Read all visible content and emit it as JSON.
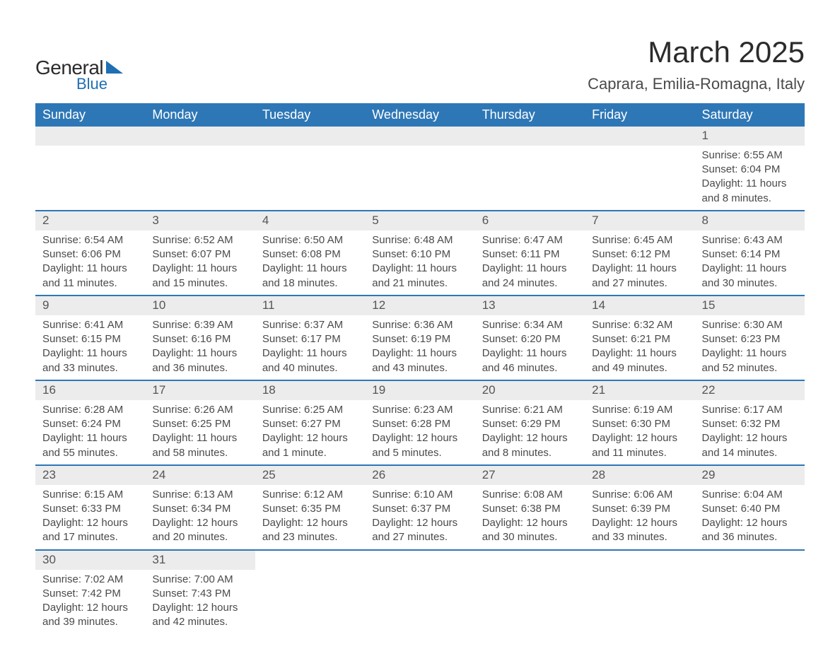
{
  "logo": {
    "text_general": "General",
    "text_blue": "Blue",
    "brand_color": "#1f6fb2"
  },
  "title": "March 2025",
  "location": "Caprara, Emilia-Romagna, Italy",
  "colors": {
    "header_bg": "#2e77b6",
    "header_text": "#ffffff",
    "daynum_bg": "#ececec",
    "row_border": "#2e77b6",
    "body_text": "#4a4a4a"
  },
  "fonts": {
    "title_pt": 42,
    "location_pt": 22,
    "weekday_pt": 18,
    "daynum_pt": 17,
    "body_pt": 15
  },
  "weekdays": [
    "Sunday",
    "Monday",
    "Tuesday",
    "Wednesday",
    "Thursday",
    "Friday",
    "Saturday"
  ],
  "weeks": [
    [
      null,
      null,
      null,
      null,
      null,
      null,
      {
        "d": "1",
        "sr": "Sunrise: 6:55 AM",
        "ss": "Sunset: 6:04 PM",
        "dl": "Daylight: 11 hours and 8 minutes."
      }
    ],
    [
      {
        "d": "2",
        "sr": "Sunrise: 6:54 AM",
        "ss": "Sunset: 6:06 PM",
        "dl": "Daylight: 11 hours and 11 minutes."
      },
      {
        "d": "3",
        "sr": "Sunrise: 6:52 AM",
        "ss": "Sunset: 6:07 PM",
        "dl": "Daylight: 11 hours and 15 minutes."
      },
      {
        "d": "4",
        "sr": "Sunrise: 6:50 AM",
        "ss": "Sunset: 6:08 PM",
        "dl": "Daylight: 11 hours and 18 minutes."
      },
      {
        "d": "5",
        "sr": "Sunrise: 6:48 AM",
        "ss": "Sunset: 6:10 PM",
        "dl": "Daylight: 11 hours and 21 minutes."
      },
      {
        "d": "6",
        "sr": "Sunrise: 6:47 AM",
        "ss": "Sunset: 6:11 PM",
        "dl": "Daylight: 11 hours and 24 minutes."
      },
      {
        "d": "7",
        "sr": "Sunrise: 6:45 AM",
        "ss": "Sunset: 6:12 PM",
        "dl": "Daylight: 11 hours and 27 minutes."
      },
      {
        "d": "8",
        "sr": "Sunrise: 6:43 AM",
        "ss": "Sunset: 6:14 PM",
        "dl": "Daylight: 11 hours and 30 minutes."
      }
    ],
    [
      {
        "d": "9",
        "sr": "Sunrise: 6:41 AM",
        "ss": "Sunset: 6:15 PM",
        "dl": "Daylight: 11 hours and 33 minutes."
      },
      {
        "d": "10",
        "sr": "Sunrise: 6:39 AM",
        "ss": "Sunset: 6:16 PM",
        "dl": "Daylight: 11 hours and 36 minutes."
      },
      {
        "d": "11",
        "sr": "Sunrise: 6:37 AM",
        "ss": "Sunset: 6:17 PM",
        "dl": "Daylight: 11 hours and 40 minutes."
      },
      {
        "d": "12",
        "sr": "Sunrise: 6:36 AM",
        "ss": "Sunset: 6:19 PM",
        "dl": "Daylight: 11 hours and 43 minutes."
      },
      {
        "d": "13",
        "sr": "Sunrise: 6:34 AM",
        "ss": "Sunset: 6:20 PM",
        "dl": "Daylight: 11 hours and 46 minutes."
      },
      {
        "d": "14",
        "sr": "Sunrise: 6:32 AM",
        "ss": "Sunset: 6:21 PM",
        "dl": "Daylight: 11 hours and 49 minutes."
      },
      {
        "d": "15",
        "sr": "Sunrise: 6:30 AM",
        "ss": "Sunset: 6:23 PM",
        "dl": "Daylight: 11 hours and 52 minutes."
      }
    ],
    [
      {
        "d": "16",
        "sr": "Sunrise: 6:28 AM",
        "ss": "Sunset: 6:24 PM",
        "dl": "Daylight: 11 hours and 55 minutes."
      },
      {
        "d": "17",
        "sr": "Sunrise: 6:26 AM",
        "ss": "Sunset: 6:25 PM",
        "dl": "Daylight: 11 hours and 58 minutes."
      },
      {
        "d": "18",
        "sr": "Sunrise: 6:25 AM",
        "ss": "Sunset: 6:27 PM",
        "dl": "Daylight: 12 hours and 1 minute."
      },
      {
        "d": "19",
        "sr": "Sunrise: 6:23 AM",
        "ss": "Sunset: 6:28 PM",
        "dl": "Daylight: 12 hours and 5 minutes."
      },
      {
        "d": "20",
        "sr": "Sunrise: 6:21 AM",
        "ss": "Sunset: 6:29 PM",
        "dl": "Daylight: 12 hours and 8 minutes."
      },
      {
        "d": "21",
        "sr": "Sunrise: 6:19 AM",
        "ss": "Sunset: 6:30 PM",
        "dl": "Daylight: 12 hours and 11 minutes."
      },
      {
        "d": "22",
        "sr": "Sunrise: 6:17 AM",
        "ss": "Sunset: 6:32 PM",
        "dl": "Daylight: 12 hours and 14 minutes."
      }
    ],
    [
      {
        "d": "23",
        "sr": "Sunrise: 6:15 AM",
        "ss": "Sunset: 6:33 PM",
        "dl": "Daylight: 12 hours and 17 minutes."
      },
      {
        "d": "24",
        "sr": "Sunrise: 6:13 AM",
        "ss": "Sunset: 6:34 PM",
        "dl": "Daylight: 12 hours and 20 minutes."
      },
      {
        "d": "25",
        "sr": "Sunrise: 6:12 AM",
        "ss": "Sunset: 6:35 PM",
        "dl": "Daylight: 12 hours and 23 minutes."
      },
      {
        "d": "26",
        "sr": "Sunrise: 6:10 AM",
        "ss": "Sunset: 6:37 PM",
        "dl": "Daylight: 12 hours and 27 minutes."
      },
      {
        "d": "27",
        "sr": "Sunrise: 6:08 AM",
        "ss": "Sunset: 6:38 PM",
        "dl": "Daylight: 12 hours and 30 minutes."
      },
      {
        "d": "28",
        "sr": "Sunrise: 6:06 AM",
        "ss": "Sunset: 6:39 PM",
        "dl": "Daylight: 12 hours and 33 minutes."
      },
      {
        "d": "29",
        "sr": "Sunrise: 6:04 AM",
        "ss": "Sunset: 6:40 PM",
        "dl": "Daylight: 12 hours and 36 minutes."
      }
    ],
    [
      {
        "d": "30",
        "sr": "Sunrise: 7:02 AM",
        "ss": "Sunset: 7:42 PM",
        "dl": "Daylight: 12 hours and 39 minutes."
      },
      {
        "d": "31",
        "sr": "Sunrise: 7:00 AM",
        "ss": "Sunset: 7:43 PM",
        "dl": "Daylight: 12 hours and 42 minutes."
      },
      null,
      null,
      null,
      null,
      null
    ]
  ]
}
